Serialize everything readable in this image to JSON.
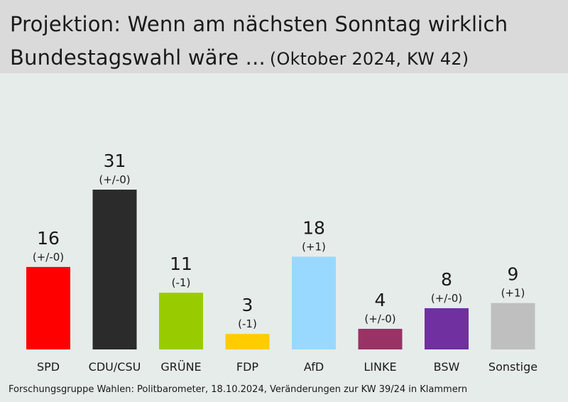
{
  "title_line1": "Projektion: Wenn am nächsten Sonntag wirklich",
  "title_line2": "Bundestagswahl wäre ...",
  "subtitle": "(Oktober 2024, KW 42)",
  "footer": "Forschungsgruppe Wahlen: Politbarometer, 18.10.2024, Veränderungen zur KW 39/24 in Klammern",
  "chart_data": {
    "type": "bar",
    "title": "Projektion: Wenn am nächsten Sonntag wirklich Bundestagswahl wäre ... (Oktober 2024, KW 42)",
    "categories": [
      "SPD",
      "CDU/CSU",
      "GRÜNE",
      "FDP",
      "AfD",
      "LINKE",
      "BSW",
      "Sonstige"
    ],
    "values": [
      16,
      31,
      11,
      3,
      18,
      4,
      8,
      9
    ],
    "changes": [
      "(+/-0)",
      "(+/-0)",
      "(-1)",
      "(-1)",
      "(+1)",
      "(+/-0)",
      "(+/-0)",
      "(+1)"
    ],
    "colors": [
      "#ff0000",
      "#2b2b2b",
      "#99cc00",
      "#ffcc00",
      "#99d9ff",
      "#993366",
      "#7030a0",
      "#bfbfbf"
    ],
    "ylim": [
      0,
      31
    ],
    "grid": false,
    "legend": "none"
  }
}
